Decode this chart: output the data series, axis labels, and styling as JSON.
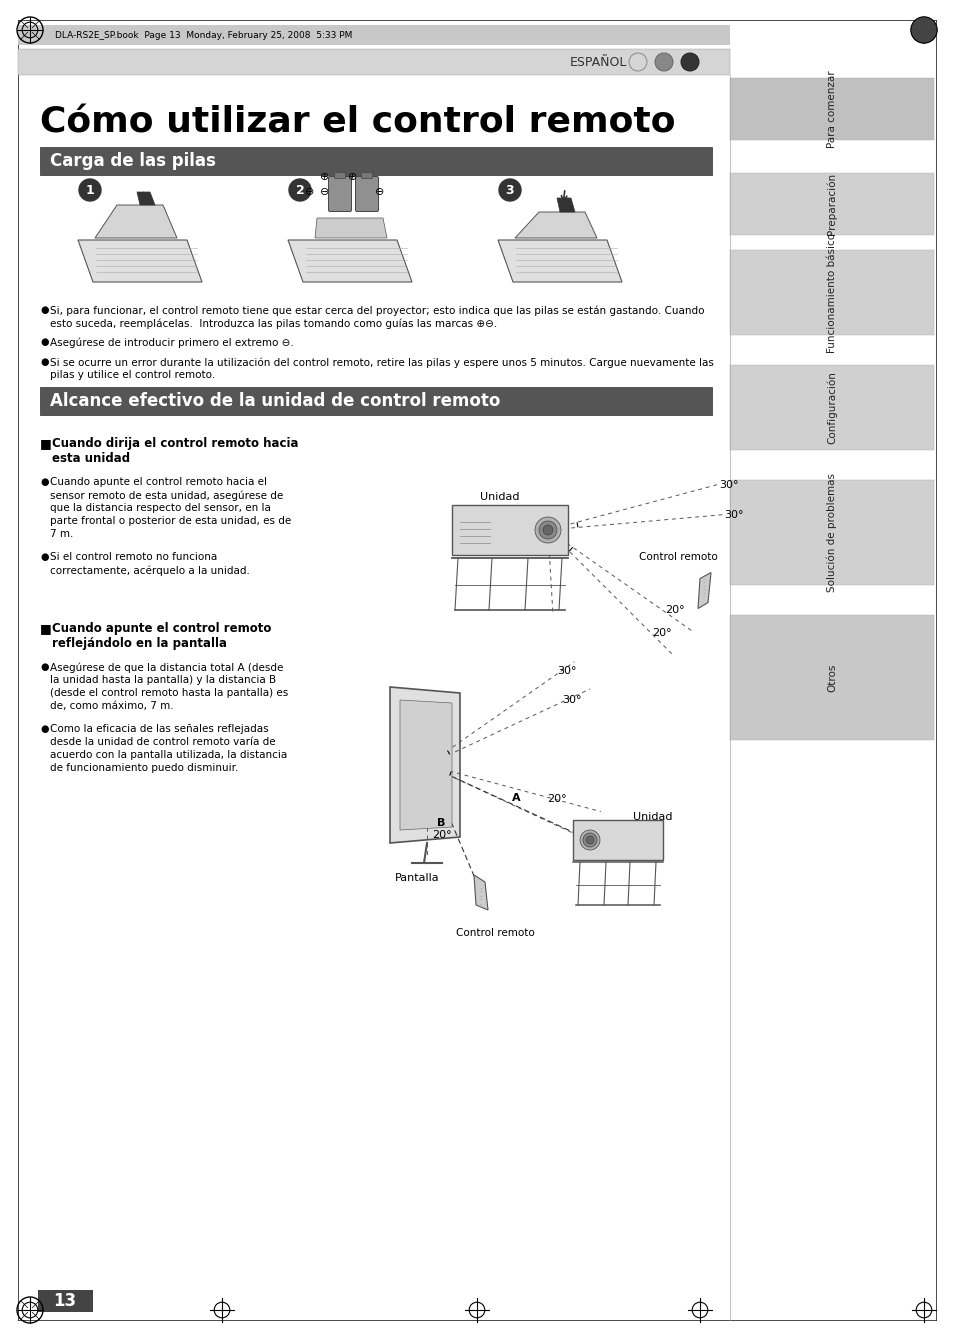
{
  "page_title": "Cómo utilizar el control remoto",
  "section1_title": "Carga de las pilas",
  "section2_title": "Alcance efectivo de la unidad de control remoto",
  "header_text": "DLA-RS2E_SP.book  Page 13  Monday, February 25, 2008  5:33 PM",
  "espanol_label": "ESPAÑOL",
  "label_unidad1": "Unidad",
  "label_control_remoto1": "Control remoto",
  "label_unidad2": "Unidad",
  "label_pantalla": "Pantalla",
  "label_control_remoto2": "Control remoto",
  "page_num": "13",
  "tab_labels": [
    "Para comenzar",
    "Preparación",
    "Funcionamiento básico",
    "Configuración",
    "Solución de problemas",
    "Otros"
  ],
  "sub1_line1": "Cuando dirija el control remoto hacia",
  "sub1_line2": "esta unidad",
  "sub2_line1": "Cuando apunte el control remoto",
  "sub2_line2": "reflejándolo en la pantalla",
  "b1_lines": [
    "Si, para funcionar, el control remoto tiene que estar cerca del proyector; esto indica que las pilas se están gastando. Cuando",
    "esto suceda, reemplácelas.  Introduzca las pilas tomando como guías las marcas ⊕⊖."
  ],
  "b2_line": "Asegúrese de introducir primero el extremo ⊖.",
  "b3_lines": [
    "Si se ocurre un error durante la utilización del control remoto, retire las pilas y espere unos 5 minutos. Cargue nuevamente las",
    "pilas y utilice el control remoto."
  ],
  "b4_lines": [
    "Cuando apunte el control remoto hacia el",
    "sensor remoto de esta unidad, asegúrese de",
    "que la distancia respecto del sensor, en la",
    "parte frontal o posterior de esta unidad, es de",
    "7 m."
  ],
  "b5_lines": [
    "Si el control remoto no funciona",
    "correctamente, acérquelo a la unidad."
  ],
  "b6_lines": [
    "Asegúrese de que la distancia total A (desde",
    "la unidad hasta la pantalla) y la distancia B",
    "(desde el control remoto hasta la pantalla) es",
    "de, como máximo, 7 m."
  ],
  "b7_lines": [
    "Como la eficacia de las señales reflejadas",
    "desde la unidad de control remoto varía de",
    "acuerdo con la pantalla utilizada, la distancia",
    "de funcionamiento puedo disminuir."
  ],
  "bg_color": "#ffffff",
  "header_bar_color": "#c8c8c8",
  "section_bar_color": "#555555",
  "section_text_color": "#ffffff"
}
